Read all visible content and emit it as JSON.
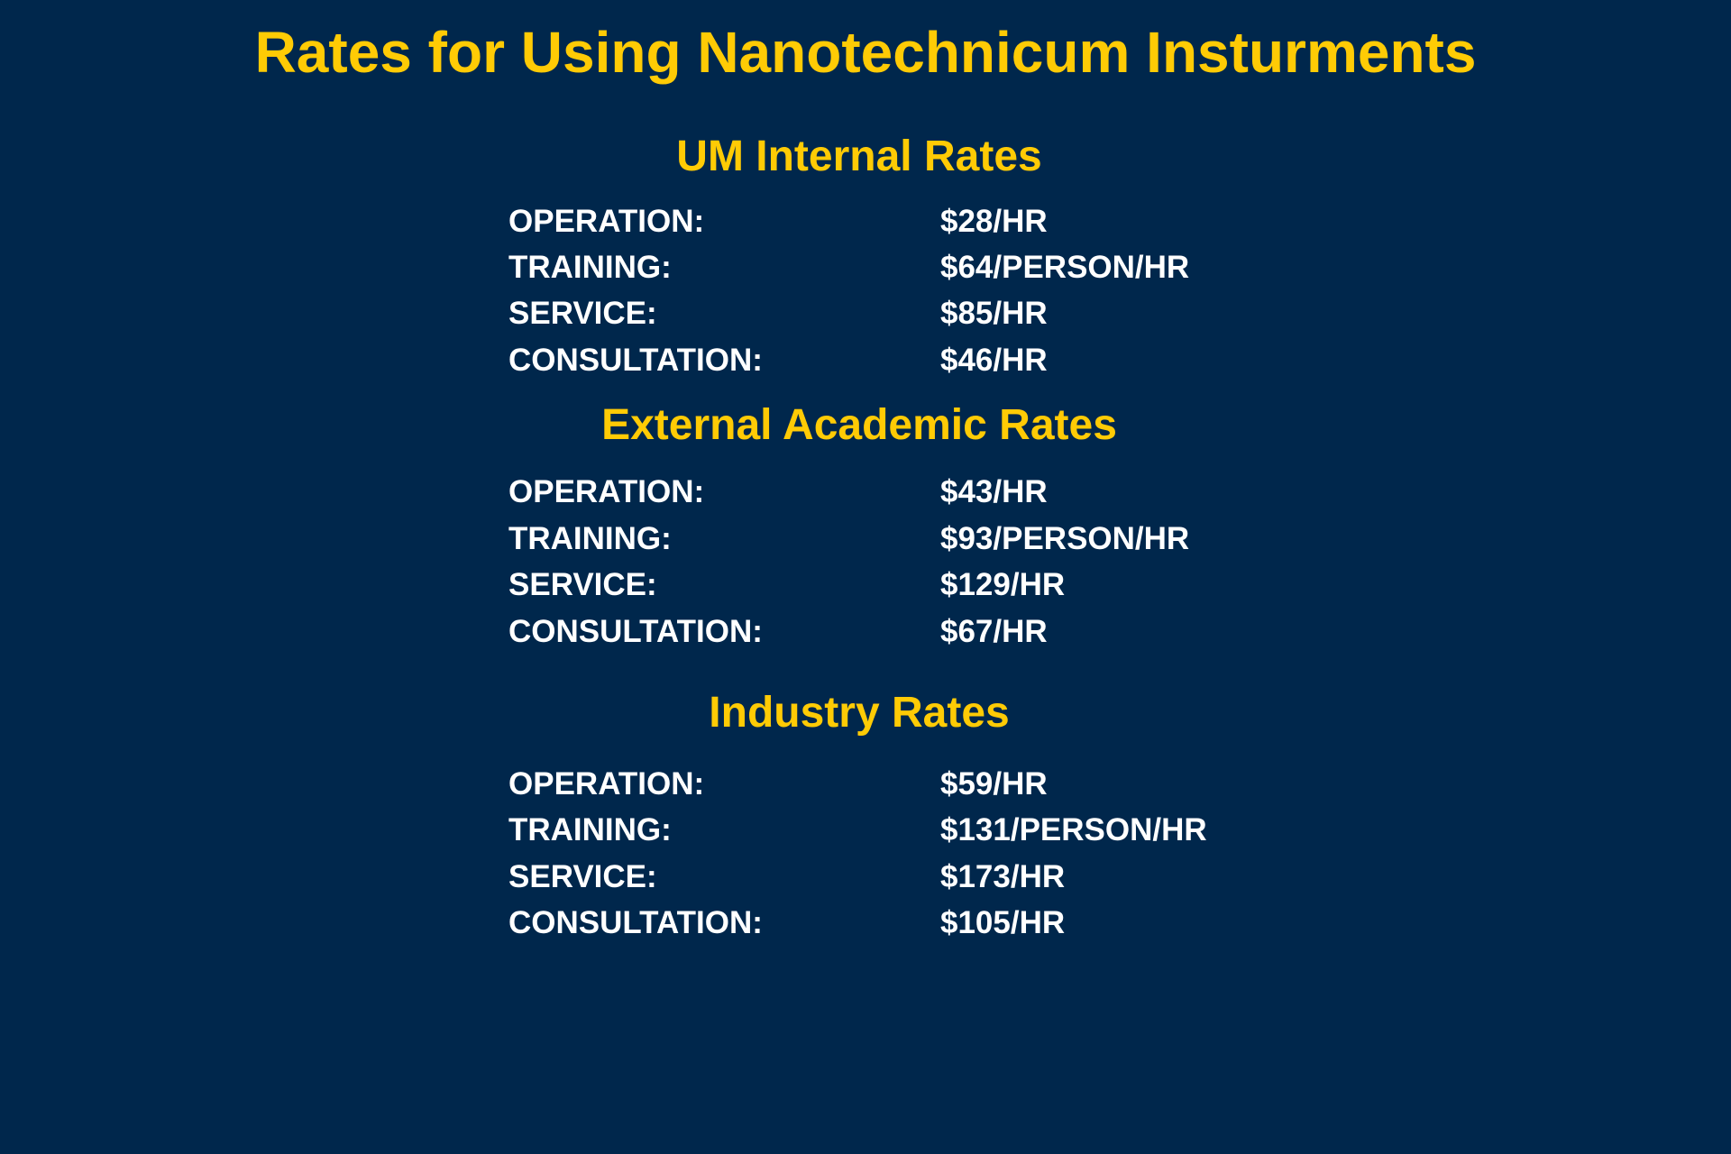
{
  "title": "Rates for Using Nanotechnicum Insturments",
  "sections": [
    {
      "heading": "UM Internal Rates",
      "rates": [
        {
          "label": "OPERATION:",
          "value": "$28/HR"
        },
        {
          "label": "TRAINING:",
          "value": "$64/PERSON/HR"
        },
        {
          "label": "SERVICE:",
          "value": "$85/HR"
        },
        {
          "label": "CONSULTATION:",
          "value": "$46/HR"
        }
      ]
    },
    {
      "heading": "External Academic Rates",
      "rates": [
        {
          "label": "OPERATION:",
          "value": "$43/HR"
        },
        {
          "label": "TRAINING:",
          "value": "$93/PERSON/HR"
        },
        {
          "label": "SERVICE:",
          "value": "$129/HR"
        },
        {
          "label": "CONSULTATION:",
          "value": "$67/HR"
        }
      ]
    },
    {
      "heading": "Industry Rates",
      "rates": [
        {
          "label": "OPERATION:",
          "value": "$59/HR"
        },
        {
          "label": "TRAINING:",
          "value": "$131/PERSON/HR"
        },
        {
          "label": "SERVICE:",
          "value": "$173/HR"
        },
        {
          "label": "CONSULTATION:",
          "value": "$105/HR"
        }
      ]
    }
  ],
  "colors": {
    "background": "#00274c",
    "heading": "#ffcb05",
    "text": "#ffffff"
  }
}
